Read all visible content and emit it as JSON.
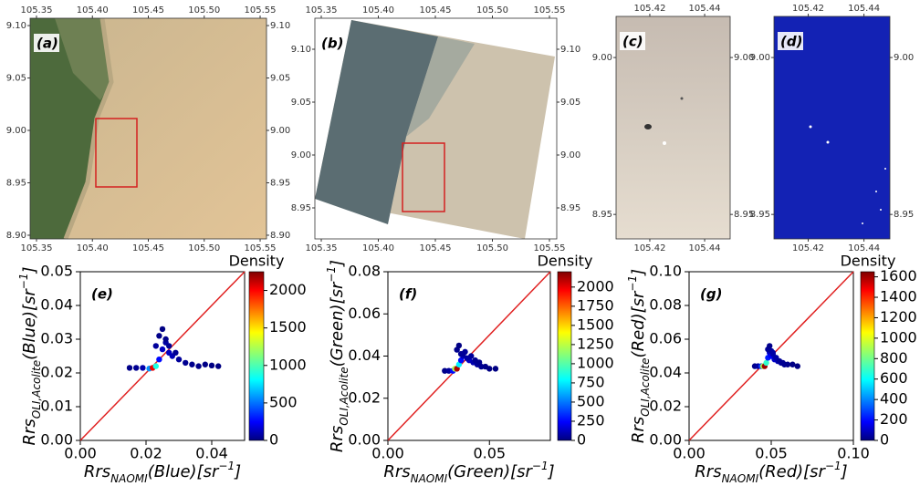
{
  "chart_data": [
    {
      "type": "map",
      "label": "(a)",
      "xticks": [
        105.35,
        {
          "value": 105.4,
          "label": "105.40"
        },
        105.45,
        {
          "value": 105.5,
          "label": "105.50"
        },
        105.55
      ],
      "yticks": [
        {
          "value": 9.1,
          "label": "9.10"
        },
        9.05,
        {
          "value": 9.0,
          "label": "9.00"
        },
        8.95,
        {
          "value": 8.9,
          "label": "8.90"
        }
      ],
      "xlim": [
        105.3443,
        105.5557
      ],
      "ylim": [
        8.8965,
        9.107
      ]
    },
    {
      "type": "map",
      "label": "(b)",
      "xticks": [
        105.35,
        {
          "value": 105.4,
          "label": "105.40"
        },
        105.45,
        {
          "value": 105.5,
          "label": "105.50"
        },
        105.55
      ],
      "yticks": [
        {
          "value": 9.1,
          "label": "9.10"
        },
        9.05,
        {
          "value": 9.0,
          "label": "9.00"
        },
        8.95
      ],
      "xlim": [
        105.3444,
        105.5564
      ],
      "ylim": [
        8.9207,
        9.1293
      ]
    },
    {
      "type": "map",
      "label": "(c)",
      "xticks": [
        105.42,
        105.44
      ],
      "yticks": [
        {
          "value": 9.0,
          "label": "9.00"
        },
        8.95
      ],
      "xlim": [
        105.4077,
        105.4493
      ],
      "ylim": [
        8.9422,
        9.0131
      ]
    },
    {
      "type": "map",
      "label": "(d)",
      "xticks": [
        105.42,
        105.44
      ],
      "yticks": [
        {
          "value": 9.0,
          "label": "9.00"
        },
        8.95
      ],
      "xlim": [
        105.4077,
        105.4493
      ],
      "ylim": [
        8.9422,
        9.0131
      ]
    },
    {
      "type": "scatter",
      "label": "(e)",
      "xlabel": {
        "base": "Rrs",
        "sub": "NAOMI",
        "main": "(Blue)[sr",
        "sup": "−1",
        "end": "]"
      },
      "ylabel": {
        "base": "Rrs",
        "sub": "OLI,Acolite",
        "main": "(Blue)[sr",
        "sup": "−1",
        "end": "]"
      },
      "xlim": [
        0,
        0.05
      ],
      "ylim": [
        0,
        0.05
      ],
      "xticks": [
        {
          "value": 0,
          "label": "0.00"
        },
        0.02,
        0.04
      ],
      "yticks": [
        {
          "value": 0,
          "label": "0.00"
        },
        0.01,
        0.02,
        0.03,
        0.04,
        0.05
      ],
      "x": [
        0.015,
        0.017,
        0.019,
        0.021,
        0.022,
        0.023,
        0.024,
        0.025,
        0.026,
        0.027,
        0.028,
        0.03,
        0.032,
        0.034,
        0.036,
        0.038,
        0.04,
        0.042,
        0.024,
        0.025,
        0.026,
        0.023,
        0.027,
        0.029
      ],
      "y": [
        0.0215,
        0.0215,
        0.0215,
        0.0213,
        0.0215,
        0.022,
        0.024,
        0.027,
        0.029,
        0.026,
        0.025,
        0.024,
        0.023,
        0.0225,
        0.022,
        0.0225,
        0.0222,
        0.022,
        0.031,
        0.033,
        0.03,
        0.028,
        0.028,
        0.026
      ],
      "density": [
        20,
        40,
        100,
        600,
        2000,
        900,
        300,
        150,
        80,
        150,
        120,
        60,
        40,
        30,
        20,
        15,
        10,
        5,
        20,
        10,
        30,
        60,
        50,
        40
      ],
      "colorbar": {
        "title": "Density",
        "lim": [
          0,
          2250
        ],
        "ticks": [
          0,
          500,
          1000,
          1500,
          2000
        ]
      }
    },
    {
      "type": "scatter",
      "label": "(f)",
      "xlabel": {
        "base": "Rrs",
        "sub": "NAOMI",
        "main": "(Green)[sr",
        "sup": "−1",
        "end": "]"
      },
      "ylabel": {
        "base": "Rrs",
        "sub": "OLI,Acolite",
        "main": "(Green)[sr",
        "sup": "−1",
        "end": "]"
      },
      "xlim": [
        0,
        0.08
      ],
      "ylim": [
        0,
        0.08
      ],
      "xticks": [
        {
          "value": 0,
          "label": "0.00"
        },
        0.05
      ],
      "yticks": [
        {
          "value": 0,
          "label": "0.00"
        },
        0.02,
        0.04,
        0.06,
        0.08
      ],
      "x": [
        0.028,
        0.03,
        0.032,
        0.033,
        0.034,
        0.035,
        0.036,
        0.037,
        0.038,
        0.04,
        0.042,
        0.044,
        0.046,
        0.048,
        0.05,
        0.053,
        0.034,
        0.035,
        0.036,
        0.039,
        0.041,
        0.043,
        0.037,
        0.045
      ],
      "y": [
        0.033,
        0.033,
        0.033,
        0.034,
        0.034,
        0.036,
        0.038,
        0.04,
        0.042,
        0.038,
        0.037,
        0.036,
        0.035,
        0.035,
        0.034,
        0.034,
        0.043,
        0.045,
        0.041,
        0.039,
        0.04,
        0.038,
        0.041,
        0.037
      ],
      "density": [
        20,
        60,
        300,
        1200,
        2100,
        800,
        300,
        120,
        60,
        150,
        100,
        60,
        40,
        20,
        10,
        5,
        30,
        10,
        40,
        80,
        60,
        40,
        50,
        30
      ],
      "colorbar": {
        "title": "Density",
        "lim": [
          0,
          2200
        ],
        "ticks": [
          0,
          250,
          500,
          750,
          1000,
          1250,
          1500,
          1750,
          2000
        ]
      }
    },
    {
      "type": "scatter",
      "label": "(g)",
      "xlabel": {
        "base": "Rrs",
        "sub": "NAOMI",
        "main": "(Red)[sr",
        "sup": "−1",
        "end": "]"
      },
      "ylabel": {
        "base": "Rrs",
        "sub": "OLI,Acolite",
        "main": "(Red)[sr",
        "sup": "−1",
        "end": "]"
      },
      "xlim": [
        0,
        0.1
      ],
      "ylim": [
        0,
        0.1
      ],
      "xticks": [
        {
          "value": 0,
          "label": "0.00"
        },
        0.05,
        {
          "value": 0.1,
          "label": "0.10"
        }
      ],
      "yticks": [
        {
          "value": 0,
          "label": "0.00"
        },
        0.02,
        0.04,
        0.06,
        0.08,
        {
          "value": 0.1,
          "label": "0.10"
        }
      ],
      "x": [
        0.04,
        0.042,
        0.044,
        0.045,
        0.046,
        0.047,
        0.048,
        0.049,
        0.05,
        0.052,
        0.054,
        0.056,
        0.058,
        0.06,
        0.063,
        0.066,
        0.048,
        0.049,
        0.05,
        0.051,
        0.053,
        0.055,
        0.051,
        0.057
      ],
      "y": [
        0.044,
        0.044,
        0.044,
        0.044,
        0.044,
        0.046,
        0.049,
        0.052,
        0.05,
        0.048,
        0.047,
        0.046,
        0.045,
        0.045,
        0.045,
        0.044,
        0.054,
        0.056,
        0.053,
        0.051,
        0.049,
        0.047,
        0.052,
        0.046
      ],
      "density": [
        20,
        60,
        300,
        900,
        1600,
        700,
        250,
        120,
        200,
        120,
        90,
        50,
        30,
        20,
        10,
        5,
        40,
        20,
        50,
        80,
        60,
        40,
        60,
        30
      ],
      "colorbar": {
        "title": "Density",
        "lim": [
          0,
          1650
        ],
        "ticks": [
          0,
          200,
          400,
          600,
          800,
          1000,
          1200,
          1400,
          1600
        ]
      }
    }
  ]
}
